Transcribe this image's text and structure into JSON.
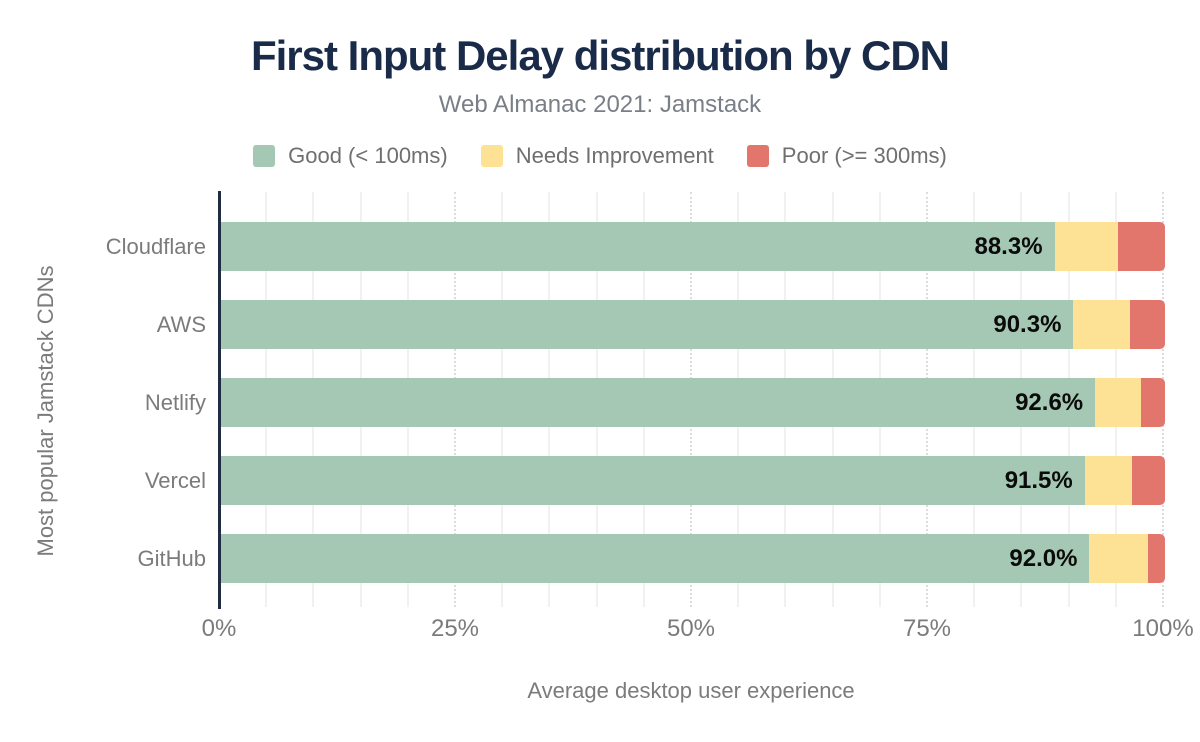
{
  "chart_data": {
    "type": "bar",
    "variant": "horizontal-stacked",
    "title": "First Input Delay distribution by CDN",
    "subtitle": "Web Almanac 2021: Jamstack",
    "categories": [
      "Cloudflare",
      "AWS",
      "Netlify",
      "Vercel",
      "GitHub"
    ],
    "series": [
      {
        "name": "Good (< 100ms)",
        "values": [
          88.3,
          90.3,
          92.6,
          91.5,
          92.0
        ],
        "value_labels": [
          "88.3%",
          "90.3%",
          "92.6%",
          "91.5%",
          "92.0%"
        ]
      },
      {
        "name": "Needs Improvement",
        "values": [
          6.7,
          6.0,
          4.9,
          5.0,
          6.2
        ],
        "value_labels": []
      },
      {
        "name": "Poor (>= 300ms)",
        "values": [
          5.0,
          3.7,
          2.5,
          3.5,
          1.8
        ],
        "value_labels": []
      }
    ],
    "xlabel": "Average desktop user experience",
    "ylabel": "Most popular Jamstack CDNs",
    "xlim": [
      0,
      100
    ],
    "x_ticks": [
      "0%",
      "25%",
      "50%",
      "75%",
      "100%"
    ],
    "x_tick_values": [
      0,
      25,
      50,
      75,
      100
    ],
    "grid": "minor solid lines every 5%, dotted major lines every 25%",
    "legend_position": "top",
    "value_labels_shown_for": "Good (< 100ms) only"
  },
  "colors": {
    "series": [
      "#a5c8b4",
      "#fde195",
      "#e2766c"
    ],
    "title": "#1a2b49",
    "axis_line": "#1f2c42",
    "axis_text": "#7b7b7b",
    "grid_minor": "#f1f1f1",
    "grid_major": "#dcdcdc",
    "value_label": "#0b0b0b",
    "background": "#ffffff"
  }
}
